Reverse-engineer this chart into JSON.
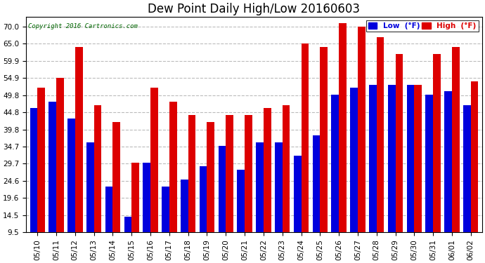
{
  "title": "Dew Point Daily High/Low 20160603",
  "copyright": "Copyright 2016 Cartronics.com",
  "background_color": "#ffffff",
  "plot_bg_color": "#ffffff",
  "bar_color_low": "#0000dd",
  "bar_color_high": "#dd0000",
  "legend_low_label": "Low  (°F)",
  "legend_high_label": "High  (°F)",
  "dates": [
    "05/10",
    "05/11",
    "05/12",
    "05/13",
    "05/14",
    "05/15",
    "05/16",
    "05/17",
    "05/18",
    "05/19",
    "05/20",
    "05/21",
    "05/22",
    "05/23",
    "05/24",
    "05/25",
    "05/26",
    "05/27",
    "05/28",
    "05/29",
    "05/30",
    "05/31",
    "06/01",
    "06/02"
  ],
  "low_values": [
    46,
    48,
    43,
    36,
    23,
    14,
    30,
    23,
    25,
    29,
    35,
    28,
    36,
    36,
    32,
    38,
    50,
    52,
    53,
    53,
    53,
    50,
    51,
    47
  ],
  "high_values": [
    52,
    55,
    64,
    47,
    42,
    30,
    52,
    48,
    44,
    42,
    44,
    44,
    46,
    47,
    65,
    64,
    71,
    70,
    67,
    62,
    53,
    62,
    64,
    54
  ],
  "ylim_min": 9.5,
  "ylim_max": 73.0,
  "yticks": [
    9.5,
    14.5,
    19.6,
    24.6,
    29.7,
    34.7,
    39.8,
    44.8,
    49.8,
    54.9,
    59.9,
    65.0,
    70.0
  ],
  "ytick_labels": [
    "9.5",
    "14.5",
    "19.6",
    "24.6",
    "29.7",
    "34.7",
    "39.8",
    "44.8",
    "49.8",
    "54.9",
    "59.9",
    "65.0",
    "70.0"
  ],
  "grid_color": "#bbbbbb",
  "grid_linestyle": "--",
  "title_fontsize": 12,
  "tick_fontsize": 7.5,
  "bar_width": 0.4,
  "bar_bottom": 9.5
}
